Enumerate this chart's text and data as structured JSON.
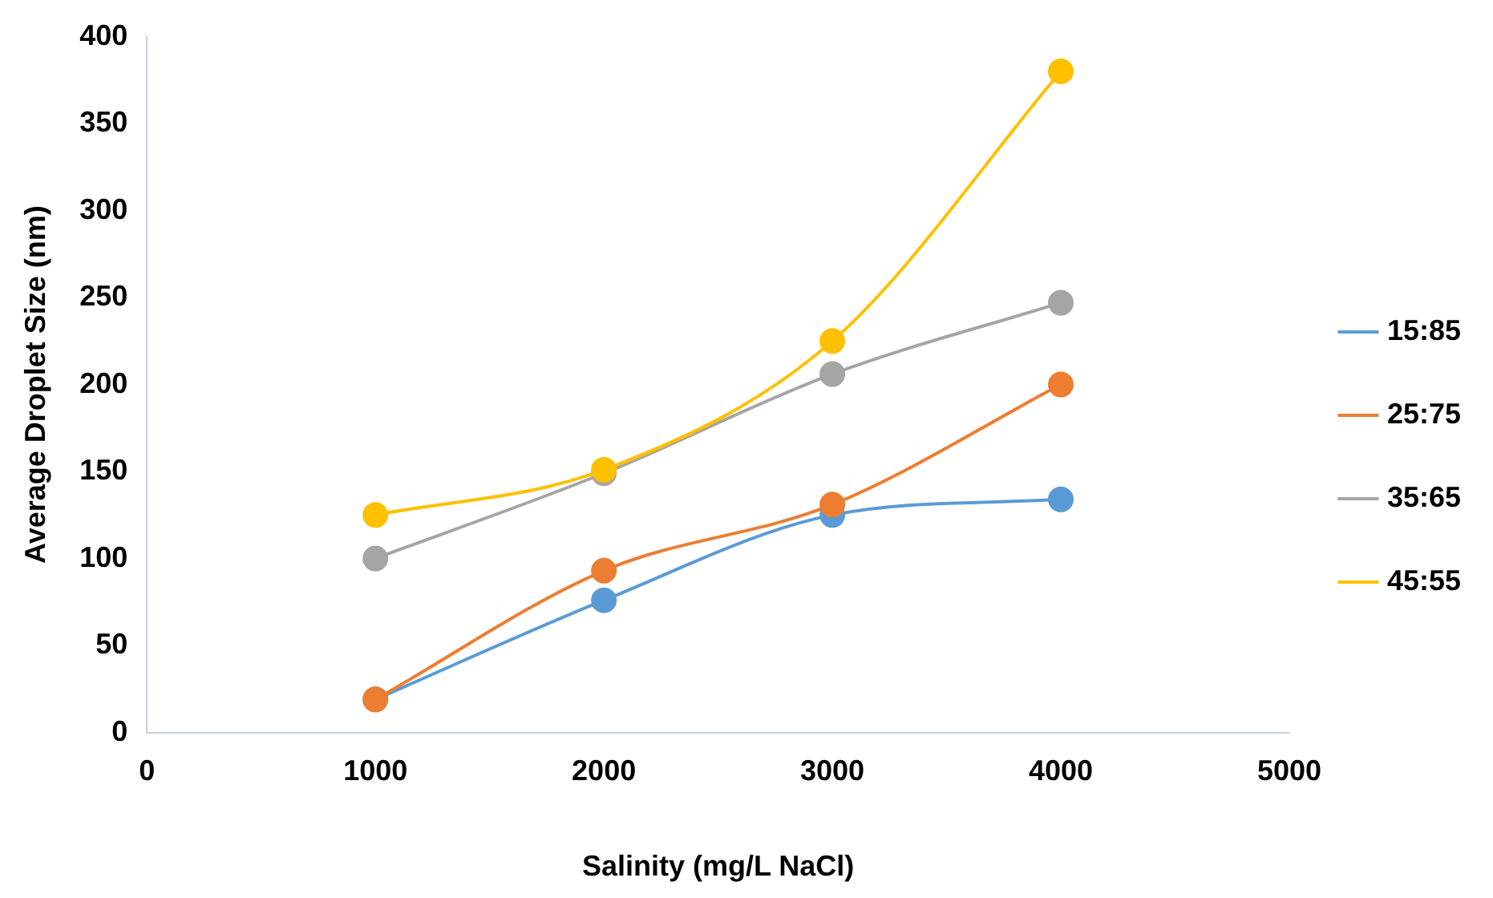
{
  "chart_data": {
    "type": "line",
    "xlabel": "Salinity (mg/L NaCl)",
    "ylabel": "Average Droplet Size (nm)",
    "x": [
      1000,
      2000,
      3000,
      4000
    ],
    "series": [
      {
        "name": "15:85",
        "color": "#5b9bd5",
        "values": [
          19,
          76,
          125,
          134
        ]
      },
      {
        "name": "25:75",
        "color": "#ed7d31",
        "values": [
          19,
          93,
          131,
          200
        ]
      },
      {
        "name": "35:65",
        "color": "#a5a5a5",
        "values": [
          100,
          149,
          206,
          247
        ]
      },
      {
        "name": "45:55",
        "color": "#ffc000",
        "values": [
          125,
          151,
          225,
          380
        ]
      }
    ],
    "xlim": [
      0,
      5000
    ],
    "xticks": [
      0,
      1000,
      2000,
      3000,
      4000,
      5000
    ],
    "ylim": [
      0,
      400
    ],
    "yticks": [
      0,
      50,
      100,
      150,
      200,
      250,
      300,
      350,
      400
    ],
    "grid": false,
    "legend": "right",
    "marker": "circle",
    "line_style": "solid"
  }
}
